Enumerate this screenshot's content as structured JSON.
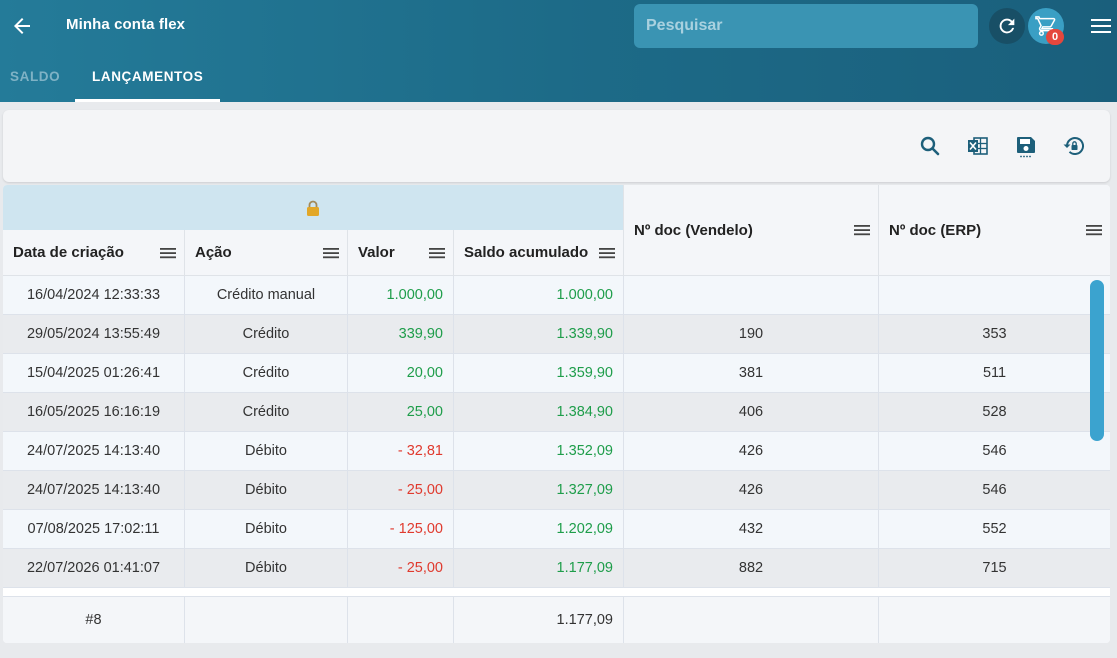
{
  "header": {
    "title": "Minha conta flex",
    "search_placeholder": "Pesquisar",
    "cart_count": "0"
  },
  "tabs": [
    {
      "label": "SALDO",
      "active": false
    },
    {
      "label": "LANÇAMENTOS",
      "active": true
    }
  ],
  "toolbar": {
    "icons": [
      "search-icon",
      "excel-export-icon",
      "save-icon",
      "restore-icon"
    ]
  },
  "table": {
    "columns": [
      {
        "label": "Data de criação"
      },
      {
        "label": "Ação"
      },
      {
        "label": "Valor"
      },
      {
        "label": "Saldo acumulado"
      },
      {
        "label": "Nº doc (Vendelo)"
      },
      {
        "label": "Nº doc (ERP)"
      }
    ],
    "rows": [
      {
        "date": "16/04/2024 12:33:33",
        "acao": "Crédito manual",
        "valor": "1.000,00",
        "saldo": "1.000,00",
        "doc_vendelo": "",
        "doc_erp": "",
        "negative": false
      },
      {
        "date": "29/05/2024 13:55:49",
        "acao": "Crédito",
        "valor": "339,90",
        "saldo": "1.339,90",
        "doc_vendelo": "190",
        "doc_erp": "353",
        "negative": false
      },
      {
        "date": "15/04/2025 01:26:41",
        "acao": "Crédito",
        "valor": "20,00",
        "saldo": "1.359,90",
        "doc_vendelo": "381",
        "doc_erp": "511",
        "negative": false
      },
      {
        "date": "16/05/2025 16:16:19",
        "acao": "Crédito",
        "valor": "25,00",
        "saldo": "1.384,90",
        "doc_vendelo": "406",
        "doc_erp": "528",
        "negative": false
      },
      {
        "date": "24/07/2025 14:13:40",
        "acao": "Débito",
        "valor": "- 32,81",
        "saldo": "1.352,09",
        "doc_vendelo": "426",
        "doc_erp": "546",
        "negative": true
      },
      {
        "date": "24/07/2025 14:13:40",
        "acao": "Débito",
        "valor": "- 25,00",
        "saldo": "1.327,09",
        "doc_vendelo": "426",
        "doc_erp": "546",
        "negative": true
      },
      {
        "date": "07/08/2025 17:02:11",
        "acao": "Débito",
        "valor": "- 125,00",
        "saldo": "1.202,09",
        "doc_vendelo": "432",
        "doc_erp": "552",
        "negative": true
      },
      {
        "date": "22/07/2026 01:41:07",
        "acao": "Débito",
        "valor": "- 25,00",
        "saldo": "1.177,09",
        "doc_vendelo": "882",
        "doc_erp": "715",
        "negative": true
      }
    ],
    "footer": {
      "count": "#8",
      "saldo_total": "1.177,09"
    }
  },
  "colors": {
    "appbar": "#1d6b88",
    "positive": "#1e9d4a",
    "negative": "#e03a2e",
    "scrollbar": "#3ba3cf"
  }
}
